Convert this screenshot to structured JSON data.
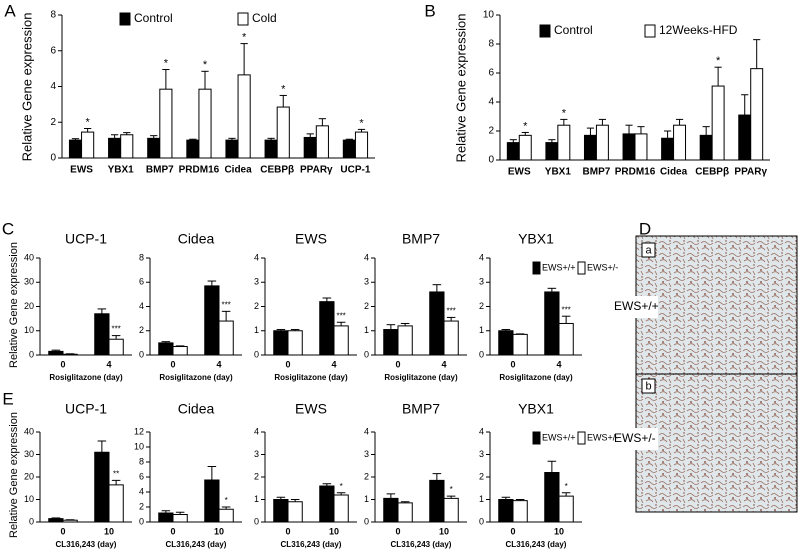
{
  "chart_data": [
    {
      "type": "bar",
      "panel": "A",
      "ylabel": "Relative Gene expression",
      "categories": [
        "EWS",
        "YBX1",
        "BMP7",
        "PRDM16",
        "Cidea",
        "CEBPβ",
        "PPARγ",
        "UCP-1"
      ],
      "ylim": [
        0,
        8
      ],
      "yticks": [
        0,
        2,
        4,
        6,
        8
      ],
      "series": [
        {
          "name": "Control",
          "color": "#000000",
          "values": [
            1.0,
            1.1,
            1.1,
            1.0,
            1.0,
            1.0,
            1.15,
            1.0
          ],
          "errors": [
            0.08,
            0.2,
            0.15,
            0.05,
            0.1,
            0.1,
            0.2,
            0.05
          ]
        },
        {
          "name": "Cold",
          "color": "#ffffff",
          "values": [
            1.45,
            1.3,
            3.85,
            3.85,
            4.65,
            2.85,
            1.8,
            1.45
          ],
          "errors": [
            0.2,
            0.12,
            1.1,
            1.0,
            1.75,
            0.65,
            0.4,
            0.15
          ],
          "annotations": [
            "*",
            null,
            "*",
            "*",
            "*",
            "*",
            null,
            "*"
          ]
        }
      ]
    },
    {
      "type": "bar",
      "panel": "B",
      "ylabel": "Relative Gene expression",
      "categories": [
        "EWS",
        "YBX1",
        "BMP7",
        "PRDM16",
        "Cidea",
        "CEBPβ",
        "PPARγ"
      ],
      "ylim": [
        0,
        10
      ],
      "yticks": [
        0,
        2,
        4,
        6,
        8,
        10
      ],
      "series": [
        {
          "name": "Control",
          "color": "#000000",
          "values": [
            1.2,
            1.2,
            1.7,
            1.8,
            1.5,
            1.7,
            3.1
          ],
          "errors": [
            0.2,
            0.2,
            0.5,
            0.6,
            0.5,
            0.6,
            1.4
          ]
        },
        {
          "name": "12Weeks-HFD",
          "color": "#ffffff",
          "values": [
            1.7,
            2.4,
            2.4,
            1.8,
            2.4,
            5.1,
            6.3
          ],
          "errors": [
            0.2,
            0.4,
            0.4,
            0.5,
            0.4,
            1.3,
            2.0
          ],
          "annotations": [
            "*",
            "*",
            null,
            null,
            null,
            "*",
            null
          ]
        }
      ]
    },
    {
      "type": "bar",
      "panel": "C",
      "title": "UCP-1",
      "ylabel": "Relative Gene expression",
      "xlabel": "Rosiglitazone (day)",
      "categories": [
        "0",
        "4"
      ],
      "ylim": [
        0,
        40
      ],
      "yticks": [
        0,
        10,
        20,
        30,
        40
      ],
      "series": [
        {
          "color": "#000000",
          "values": [
            1.5,
            17
          ],
          "errors": [
            0.5,
            2
          ]
        },
        {
          "color": "#ffffff",
          "values": [
            0.3,
            6.5
          ],
          "errors": [
            0.2,
            1.5
          ],
          "annotations": [
            null,
            "***"
          ]
        }
      ]
    },
    {
      "type": "bar",
      "title": "Cidea",
      "xlabel": "Rosiglitazone (day)",
      "categories": [
        "0",
        "4"
      ],
      "ylim": [
        0,
        8
      ],
      "yticks": [
        0,
        2,
        4,
        6,
        8
      ],
      "series": [
        {
          "color": "#000000",
          "values": [
            1.0,
            5.7
          ],
          "errors": [
            0.1,
            0.4
          ]
        },
        {
          "color": "#ffffff",
          "values": [
            0.7,
            2.8
          ],
          "errors": [
            0.05,
            0.8
          ],
          "annotations": [
            null,
            "***"
          ]
        }
      ]
    },
    {
      "type": "bar",
      "title": "EWS",
      "xlabel": "Rosiglitazone (day)",
      "categories": [
        "0",
        "4"
      ],
      "ylim": [
        0,
        4
      ],
      "yticks": [
        0,
        1,
        2,
        3,
        4
      ],
      "series": [
        {
          "color": "#000000",
          "values": [
            1.0,
            2.2
          ],
          "errors": [
            0.05,
            0.15
          ]
        },
        {
          "color": "#ffffff",
          "values": [
            1.0,
            1.2
          ],
          "errors": [
            0.05,
            0.15
          ],
          "annotations": [
            null,
            "***"
          ]
        }
      ]
    },
    {
      "type": "bar",
      "title": "BMP7",
      "xlabel": "Rosiglitazone (day)",
      "categories": [
        "0",
        "4"
      ],
      "ylim": [
        0,
        4
      ],
      "yticks": [
        0,
        1,
        2,
        3,
        4
      ],
      "series": [
        {
          "color": "#000000",
          "values": [
            1.05,
            2.6
          ],
          "errors": [
            0.2,
            0.3
          ]
        },
        {
          "color": "#ffffff",
          "values": [
            1.2,
            1.4
          ],
          "errors": [
            0.1,
            0.15
          ],
          "annotations": [
            null,
            "***"
          ]
        }
      ]
    },
    {
      "type": "bar",
      "title": "YBX1",
      "xlabel": "Rosiglitazone (day)",
      "categories": [
        "0",
        "4"
      ],
      "ylim": [
        0,
        4
      ],
      "yticks": [
        0,
        1,
        2,
        3,
        4
      ],
      "series": [
        {
          "name": "EWS+/+",
          "color": "#000000",
          "values": [
            1.0,
            2.6
          ],
          "errors": [
            0.05,
            0.15
          ]
        },
        {
          "name": "EWS+/-",
          "color": "#ffffff",
          "values": [
            0.85,
            1.3
          ],
          "errors": [
            0.02,
            0.3
          ],
          "annotations": [
            null,
            "***"
          ]
        }
      ]
    },
    {
      "type": "bar",
      "panel": "E",
      "title": "UCP-1",
      "ylabel": "Relative Gene expression",
      "xlabel": "CL316,243 (day)",
      "categories": [
        "0",
        "10"
      ],
      "ylim": [
        0,
        40
      ],
      "yticks": [
        0,
        10,
        20,
        30,
        40
      ],
      "series": [
        {
          "color": "#000000",
          "values": [
            1.5,
            31
          ],
          "errors": [
            0.3,
            5
          ]
        },
        {
          "color": "#ffffff",
          "values": [
            0.8,
            16.5
          ],
          "errors": [
            0.2,
            2
          ],
          "annotations": [
            null,
            "**"
          ]
        }
      ]
    },
    {
      "type": "bar",
      "title": "Cidea",
      "xlabel": "CL316,243 (day)",
      "categories": [
        "0",
        "10"
      ],
      "ylim": [
        0,
        12
      ],
      "yticks": [
        0,
        2,
        4,
        6,
        8,
        10,
        12
      ],
      "series": [
        {
          "color": "#000000",
          "values": [
            1.2,
            5.6
          ],
          "errors": [
            0.3,
            1.8
          ]
        },
        {
          "color": "#ffffff",
          "values": [
            1.0,
            1.7
          ],
          "errors": [
            0.3,
            0.3
          ],
          "annotations": [
            null,
            "*"
          ]
        }
      ]
    },
    {
      "type": "bar",
      "title": "EWS",
      "xlabel": "CL316,243 (day)",
      "categories": [
        "0",
        "10"
      ],
      "ylim": [
        0,
        4
      ],
      "yticks": [
        0,
        1,
        2,
        3,
        4
      ],
      "series": [
        {
          "color": "#000000",
          "values": [
            1.0,
            1.6
          ],
          "errors": [
            0.1,
            0.1
          ]
        },
        {
          "color": "#ffffff",
          "values": [
            0.9,
            1.2
          ],
          "errors": [
            0.1,
            0.1
          ],
          "annotations": [
            null,
            "*"
          ]
        }
      ]
    },
    {
      "type": "bar",
      "title": "BMP7",
      "xlabel": "CL316,243 (day)",
      "categories": [
        "0",
        "10"
      ],
      "ylim": [
        0,
        4
      ],
      "yticks": [
        0,
        1,
        2,
        3,
        4
      ],
      "series": [
        {
          "color": "#000000",
          "values": [
            1.05,
            1.85
          ],
          "errors": [
            0.2,
            0.3
          ]
        },
        {
          "color": "#ffffff",
          "values": [
            0.85,
            1.05
          ],
          "errors": [
            0.05,
            0.1
          ],
          "annotations": [
            null,
            "*"
          ]
        }
      ]
    },
    {
      "type": "bar",
      "title": "YBX1",
      "xlabel": "CL316,243 (day)",
      "categories": [
        "0",
        "10"
      ],
      "ylim": [
        0,
        4
      ],
      "yticks": [
        0,
        1,
        2,
        3,
        4
      ],
      "series": [
        {
          "name": "EWS+/+",
          "color": "#000000",
          "values": [
            1.0,
            2.2
          ],
          "errors": [
            0.1,
            0.5
          ]
        },
        {
          "name": "EWS+/-",
          "color": "#ffffff",
          "values": [
            0.95,
            1.15
          ],
          "errors": [
            0.05,
            0.15
          ],
          "annotations": [
            null,
            "*"
          ]
        }
      ]
    }
  ],
  "image_panel": {
    "letter": "D",
    "images": [
      {
        "label": "a",
        "caption": "EWS+/+"
      },
      {
        "label": "b",
        "caption": "EWS+/-"
      }
    ]
  }
}
